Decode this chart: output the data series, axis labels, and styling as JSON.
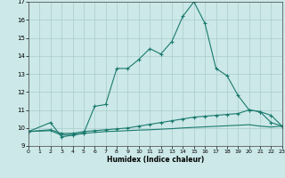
{
  "xlabel": "Humidex (Indice chaleur)",
  "x_values": [
    0,
    1,
    2,
    3,
    4,
    5,
    6,
    7,
    8,
    9,
    10,
    11,
    12,
    13,
    14,
    15,
    16,
    17,
    18,
    19,
    20,
    21,
    22,
    23
  ],
  "line1_y": [
    9.8,
    null,
    10.3,
    9.5,
    9.6,
    9.7,
    11.2,
    11.3,
    13.3,
    13.3,
    13.8,
    14.4,
    14.1,
    14.8,
    16.2,
    17.0,
    15.8,
    13.3,
    12.9,
    11.8,
    11.0,
    10.9,
    10.3,
    10.1
  ],
  "line2_y": [
    9.8,
    null,
    9.9,
    9.7,
    9.7,
    9.8,
    9.85,
    9.9,
    9.95,
    10.0,
    10.1,
    10.2,
    10.3,
    10.4,
    10.5,
    10.6,
    10.65,
    10.7,
    10.75,
    10.8,
    11.0,
    10.9,
    10.7,
    10.1
  ],
  "line3_y": [
    9.8,
    null,
    9.85,
    9.6,
    9.65,
    9.7,
    9.75,
    9.8,
    9.82,
    9.85,
    9.88,
    9.9,
    9.93,
    9.96,
    10.0,
    10.03,
    10.06,
    10.09,
    10.12,
    10.15,
    10.18,
    10.1,
    10.05,
    10.1
  ],
  "line_color": "#1a7a6e",
  "bg_color": "#cce8e8",
  "grid_color": "#aacccc",
  "ylim": [
    9,
    17
  ],
  "yticks": [
    9,
    10,
    11,
    12,
    13,
    14,
    15,
    16,
    17
  ],
  "xlim": [
    0,
    23
  ],
  "xticks": [
    0,
    1,
    2,
    3,
    4,
    5,
    6,
    7,
    8,
    9,
    10,
    11,
    12,
    13,
    14,
    15,
    16,
    17,
    18,
    19,
    20,
    21,
    22,
    23
  ]
}
